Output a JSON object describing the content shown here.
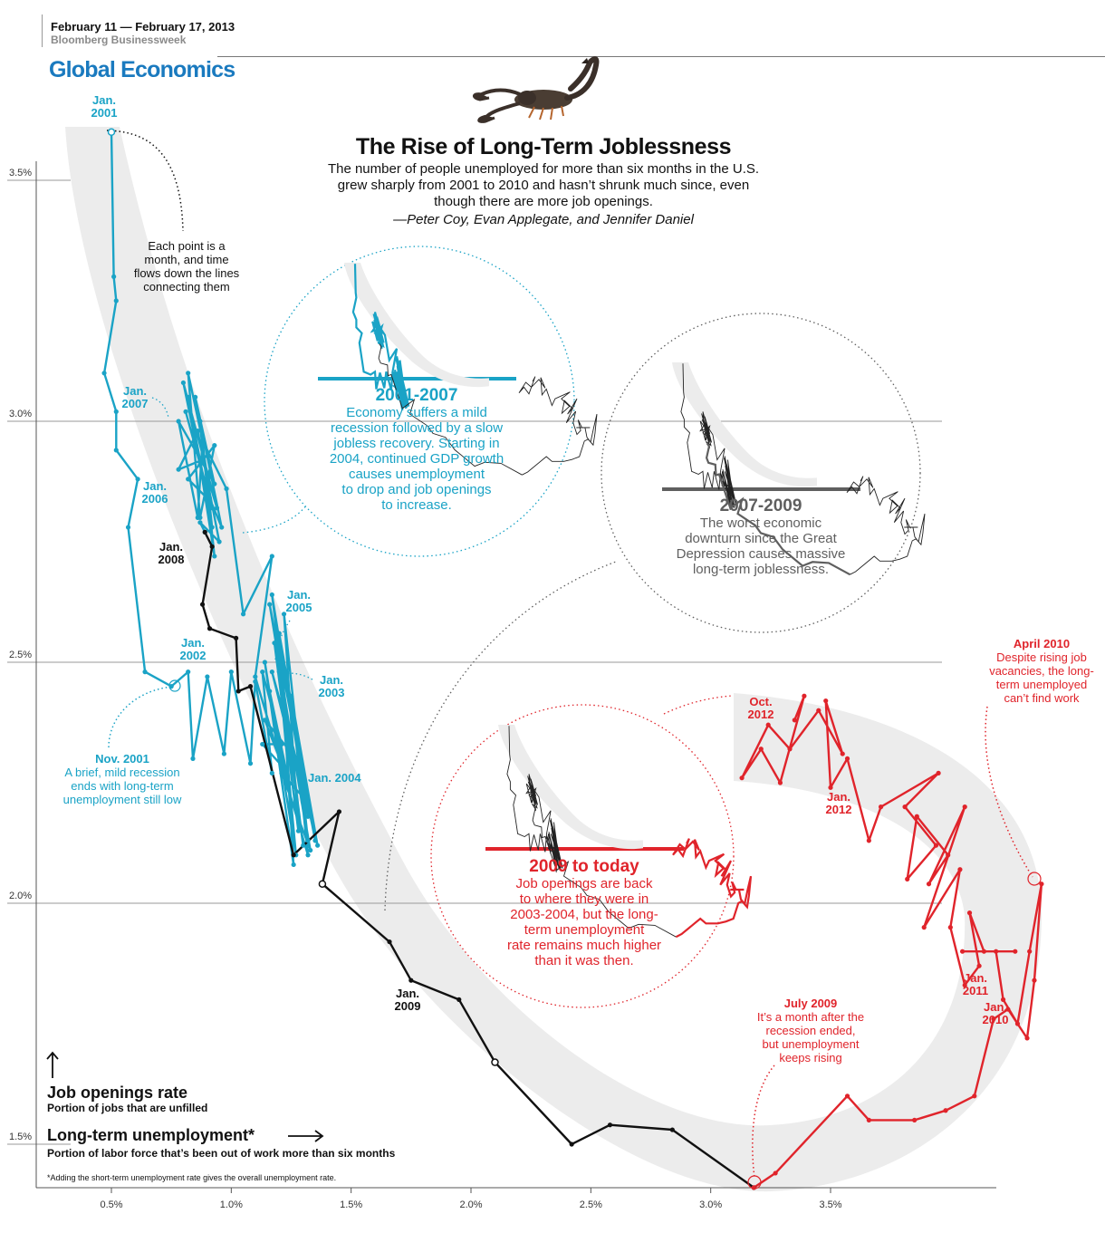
{
  "header": {
    "issue_date": "February 11 — February 17, 2013",
    "publication": "Bloomberg Businessweek",
    "section": "Global Economics"
  },
  "colors": {
    "blue": "#1aa3c6",
    "black": "#111111",
    "red": "#e0242b",
    "gray": "#5f5f5f",
    "band": "#ececec",
    "section": "#1a7abf"
  },
  "chart_data": {
    "type": "line",
    "title": "The Rise of Long-Term Joblessness",
    "subtitle": "The number of people unemployed for more than six months in the U.S. grew sharply from 2001 to 2010 and hasn’t shrunk much since, even though there are more job openings.",
    "byline": "—Peter Coy, Evan Applegate, and Jennifer Daniel",
    "xlabel": "Long-term unemployment*",
    "xlabel_sub": "Portion of labor force that’s been out of work more than six months",
    "ylabel": "Job openings rate",
    "ylabel_sub": "Portion of jobs that are unfilled",
    "footnote": "*Adding the short-term unemployment rate gives the overall unemployment rate.",
    "xlim": [
      0.2,
      4.4
    ],
    "ylim": [
      1.35,
      3.7
    ],
    "x_ticks": [
      "0.5%",
      "1.0%",
      "1.5%",
      "2.0%",
      "2.5%",
      "3.0%",
      "3.5%"
    ],
    "x_tick_values": [
      0.5,
      1.0,
      1.5,
      2.0,
      2.5,
      3.0,
      3.5
    ],
    "y_ticks": [
      "1.5%",
      "2.0%",
      "2.5%",
      "3.0%",
      "3.5%"
    ],
    "y_tick_values": [
      1.5,
      2.0,
      2.5,
      3.0,
      3.5
    ],
    "series": [
      {
        "color": "blue",
        "points": [
          [
            0.5,
            3.6
          ],
          [
            0.51,
            3.3
          ],
          [
            0.52,
            3.25
          ],
          [
            0.47,
            3.1
          ],
          [
            0.52,
            3.02
          ],
          [
            0.52,
            2.94
          ],
          [
            0.61,
            2.88
          ],
          [
            0.57,
            2.78
          ],
          [
            0.64,
            2.48
          ],
          [
            0.75,
            2.45
          ],
          [
            0.82,
            2.48
          ],
          [
            0.84,
            2.3
          ],
          [
            0.9,
            2.47
          ],
          [
            0.97,
            2.31
          ],
          [
            1.0,
            2.48
          ],
          [
            1.08,
            2.29
          ],
          [
            1.1,
            2.46
          ],
          [
            1.17,
            2.27
          ],
          [
            1.13,
            2.48
          ],
          [
            1.21,
            2.33
          ],
          [
            1.13,
            2.33
          ],
          [
            1.22,
            2.28
          ],
          [
            1.16,
            2.44
          ],
          [
            1.24,
            2.25
          ],
          [
            1.14,
            2.38
          ],
          [
            1.27,
            2.3
          ],
          [
            1.17,
            2.48
          ],
          [
            1.3,
            2.22
          ],
          [
            1.21,
            2.27
          ],
          [
            1.33,
            2.11
          ],
          [
            1.18,
            2.54
          ],
          [
            1.28,
            2.15
          ],
          [
            1.22,
            2.6
          ],
          [
            1.32,
            2.13
          ],
          [
            1.16,
            2.62
          ],
          [
            1.35,
            2.13
          ],
          [
            1.2,
            2.56
          ],
          [
            1.26,
            2.08
          ],
          [
            1.14,
            2.5
          ],
          [
            1.27,
            2.1
          ],
          [
            1.2,
            2.48
          ],
          [
            1.3,
            2.12
          ],
          [
            1.17,
            2.64
          ],
          [
            1.32,
            2.18
          ],
          [
            1.23,
            2.38
          ],
          [
            1.36,
            2.12
          ],
          [
            1.25,
            2.43
          ],
          [
            1.32,
            2.1
          ],
          [
            1.1,
            2.47
          ],
          [
            1.17,
            2.72
          ],
          [
            1.05,
            2.6
          ],
          [
            0.98,
            2.86
          ],
          [
            0.88,
            2.96
          ],
          [
            0.92,
            2.78
          ],
          [
            0.82,
            3.05
          ],
          [
            0.9,
            2.84
          ],
          [
            0.82,
            2.88
          ],
          [
            0.93,
            2.95
          ],
          [
            0.87,
            2.8
          ],
          [
            0.82,
            3.1
          ],
          [
            0.88,
            2.96
          ],
          [
            0.86,
            2.8
          ],
          [
            0.78,
            3.0
          ],
          [
            0.93,
            2.87
          ],
          [
            0.85,
            3.05
          ],
          [
            0.92,
            2.82
          ],
          [
            0.81,
            3.02
          ],
          [
            0.91,
            2.84
          ],
          [
            0.96,
            2.78
          ],
          [
            0.87,
            3.0
          ],
          [
            0.93,
            2.72
          ],
          [
            0.87,
            2.91
          ],
          [
            0.8,
            3.08
          ],
          [
            0.94,
            2.82
          ],
          [
            0.88,
            2.92
          ],
          [
            0.78,
            2.9
          ],
          [
            0.86,
            2.98
          ],
          [
            0.95,
            2.75
          ],
          [
            0.87,
            2.79
          ],
          [
            0.89,
            2.77
          ]
        ]
      },
      {
        "color": "black",
        "points": [
          [
            0.89,
            2.77
          ],
          [
            0.92,
            2.74
          ],
          [
            0.88,
            2.62
          ],
          [
            0.91,
            2.57
          ],
          [
            1.02,
            2.55
          ],
          [
            1.03,
            2.44
          ],
          [
            1.08,
            2.45
          ],
          [
            1.26,
            2.1
          ],
          [
            1.45,
            2.19
          ],
          [
            1.38,
            2.04
          ],
          [
            1.66,
            1.92
          ],
          [
            1.75,
            1.84
          ],
          [
            1.95,
            1.8
          ],
          [
            2.1,
            1.67
          ],
          [
            2.42,
            1.5
          ],
          [
            2.58,
            1.54
          ],
          [
            2.84,
            1.53
          ],
          [
            3.18,
            1.41
          ]
        ]
      },
      {
        "color": "red",
        "points": [
          [
            3.18,
            1.41
          ],
          [
            3.27,
            1.44
          ],
          [
            3.57,
            1.6
          ],
          [
            3.66,
            1.55
          ],
          [
            3.85,
            1.55
          ],
          [
            3.98,
            1.57
          ],
          [
            4.1,
            1.6
          ],
          [
            4.18,
            1.76
          ],
          [
            4.24,
            1.78
          ],
          [
            4.32,
            1.72
          ],
          [
            4.35,
            1.84
          ],
          [
            4.38,
            2.04
          ],
          [
            4.33,
            1.9
          ],
          [
            4.28,
            1.75
          ],
          [
            4.22,
            1.8
          ],
          [
            4.19,
            1.9
          ],
          [
            4.27,
            1.9
          ],
          [
            4.05,
            1.9
          ],
          [
            4.14,
            1.9
          ],
          [
            4.08,
            1.98
          ],
          [
            4.12,
            1.87
          ],
          [
            4.06,
            1.83
          ],
          [
            4.0,
            1.95
          ],
          [
            4.04,
            2.07
          ],
          [
            3.89,
            1.95
          ],
          [
            4.06,
            2.2
          ],
          [
            3.91,
            2.04
          ],
          [
            3.99,
            2.1
          ],
          [
            3.86,
            2.18
          ],
          [
            3.82,
            2.05
          ],
          [
            3.94,
            2.12
          ],
          [
            3.81,
            2.2
          ],
          [
            3.95,
            2.27
          ],
          [
            3.71,
            2.2
          ],
          [
            3.66,
            2.13
          ],
          [
            3.57,
            2.3
          ],
          [
            3.5,
            2.24
          ],
          [
            3.48,
            2.42
          ],
          [
            3.55,
            2.31
          ],
          [
            3.45,
            2.4
          ],
          [
            3.33,
            2.32
          ],
          [
            3.24,
            2.37
          ],
          [
            3.13,
            2.26
          ],
          [
            3.21,
            2.32
          ],
          [
            3.29,
            2.25
          ],
          [
            3.39,
            2.43
          ],
          [
            3.35,
            2.38
          ]
        ]
      }
    ]
  },
  "period_labels": {
    "jan2001": [
      "Jan.",
      "2001"
    ],
    "jan2007": [
      "Jan.",
      "2007"
    ],
    "jan2006": [
      "Jan.",
      "2006"
    ],
    "jan2008": [
      "Jan.",
      "2008"
    ],
    "jan2005": [
      "Jan.",
      "2005"
    ],
    "jan2002": [
      "Jan.",
      "2002"
    ],
    "jan2003": [
      "Jan.",
      "2003"
    ],
    "jan2004": "Jan. 2004",
    "jan2009": [
      "Jan.",
      "2009"
    ],
    "oct2012": [
      "Oct.",
      "2012"
    ],
    "jan2012": [
      "Jan.",
      "2012"
    ],
    "jan2011": [
      "Jan.",
      "2011"
    ],
    "jan2010": [
      "Jan.",
      "2010"
    ]
  },
  "annotations": {
    "each_point": [
      "Each point is a",
      "month, and time",
      "flows down the lines",
      "connecting them"
    ],
    "nov2001_title": "Nov. 2001",
    "nov2001_text": [
      "A brief, mild recession",
      "ends with long-term",
      "unemployment still low"
    ],
    "april2010_title": "April 2010",
    "april2010_text": [
      "Despite rising job",
      "vacancies, the long-",
      "term unemployed",
      "can’t find work"
    ],
    "july2009_title": "July 2009",
    "july2009_text": [
      "It’s a month after the",
      "recession ended,",
      "but unemployment",
      "keeps rising"
    ]
  },
  "phases": [
    {
      "title": "2001-2007",
      "text": [
        "Economy suffers a mild",
        "recession followed by a slow",
        "jobless recovery. Starting in",
        "2004, continued GDP growth",
        "causes unemployment",
        "to drop and job openings",
        "to increase."
      ]
    },
    {
      "title": "2007-2009",
      "text": [
        "The worst economic",
        "downturn since the Great",
        "Depression causes massive",
        "long-term joblessness."
      ]
    },
    {
      "title": "2009 to today",
      "text": [
        "Job openings are back",
        "to where they were in",
        "2003-2004, but the long-",
        "term unemployment",
        "rate remains much higher",
        "than it was then."
      ]
    }
  ]
}
